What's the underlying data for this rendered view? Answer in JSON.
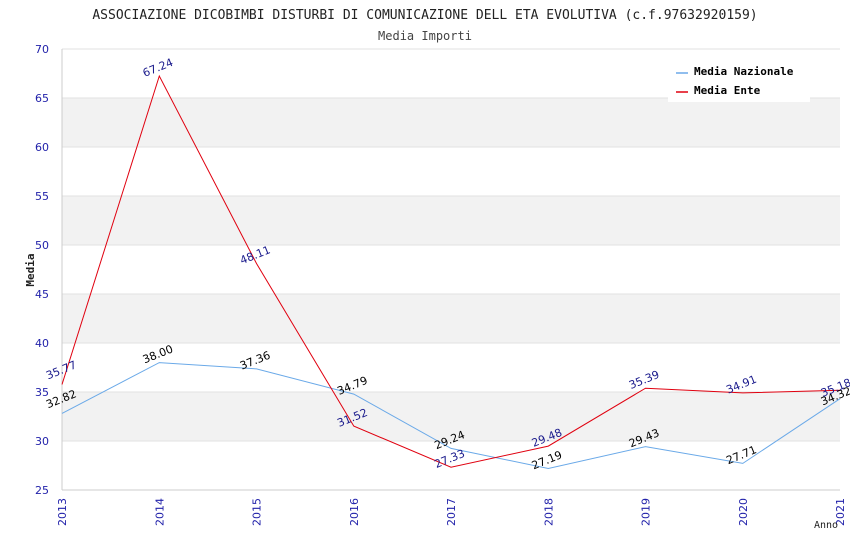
{
  "chart_data": {
    "type": "line",
    "title": "ASSOCIAZIONE DICOBIMBI DISTURBI DI COMUNICAZIONE DELL ETA EVOLUTIVA (c.f.97632920159)",
    "subtitle": "Media Importi",
    "xlabel": "Anno",
    "ylabel": "Media",
    "ylim": [
      25,
      70
    ],
    "yticks": [
      "25",
      "30",
      "35",
      "40",
      "45",
      "50",
      "55",
      "60",
      "65",
      "70"
    ],
    "x": [
      "2013",
      "2014",
      "2015",
      "2016",
      "2017",
      "2018",
      "2019",
      "2020",
      "2021"
    ],
    "series": [
      {
        "name": "Media Nazionale",
        "color": "#6aa9e8",
        "label_color": "#000000",
        "values": [
          32.82,
          38.0,
          37.36,
          34.79,
          29.24,
          27.19,
          29.43,
          27.71,
          34.32
        ],
        "labels": [
          "32.82",
          "38.00",
          "37.36",
          "34.79",
          "29.24",
          "27.19",
          "29.43",
          "27.71",
          "34.32"
        ]
      },
      {
        "name": "Media Ente",
        "color": "#e0000f",
        "label_color": "#1a1a8c",
        "values": [
          35.77,
          67.24,
          48.11,
          31.52,
          27.33,
          29.48,
          35.39,
          34.91,
          35.18
        ],
        "labels": [
          "35.77",
          "67.24",
          "48.11",
          "31.52",
          "27.33",
          "29.48",
          "35.39",
          "34.91",
          "35.18"
        ]
      }
    ],
    "legend_position": "top-right",
    "grid": true
  }
}
